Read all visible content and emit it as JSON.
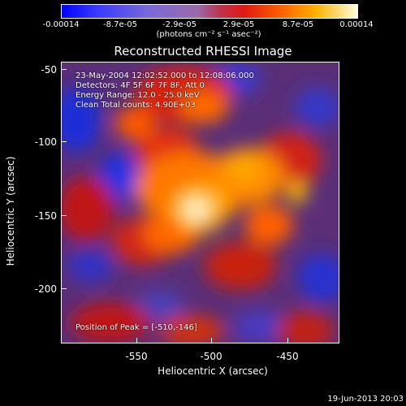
{
  "colorbar": {
    "ticks": [
      "-0.00014",
      "-8.7e-05",
      "-2.9e-05",
      "2.9e-05",
      "8.7e-05",
      "0.00014"
    ],
    "units": "(photons cm⁻² s⁻¹ asec⁻²)",
    "range": [
      -0.00014,
      0.00014
    ]
  },
  "chart_data": {
    "type": "heatmap",
    "title": "Reconstructed RHESSI Image",
    "xlabel": "Heliocentric X (arcsec)",
    "ylabel": "Heliocentric Y (arcsec)",
    "xlim": [
      -595,
      -411
    ],
    "ylim": [
      -237,
      -45
    ],
    "xticks": [
      "-550",
      "-500",
      "-450"
    ],
    "xtick_values": [
      -550,
      -500,
      -450
    ],
    "yticks": [
      "-50",
      "-100",
      "-150",
      "-200"
    ],
    "ytick_values": [
      -50,
      -100,
      -150,
      -200
    ],
    "annotations": [
      "23-May-2004 12:02:52.000 to 12:08:06.000",
      "Detectors: 4F 5F 6F 7F 8F, Att 0",
      "Energy Range: 12.0 - 25.0 keV",
      "Clean     Total counts: 4.90E+03"
    ],
    "peak_text": "Position of Peak = [-510,-146]",
    "peak": [
      -510,
      -146
    ]
  },
  "footer_date": "19-Jun-2013 20:03"
}
